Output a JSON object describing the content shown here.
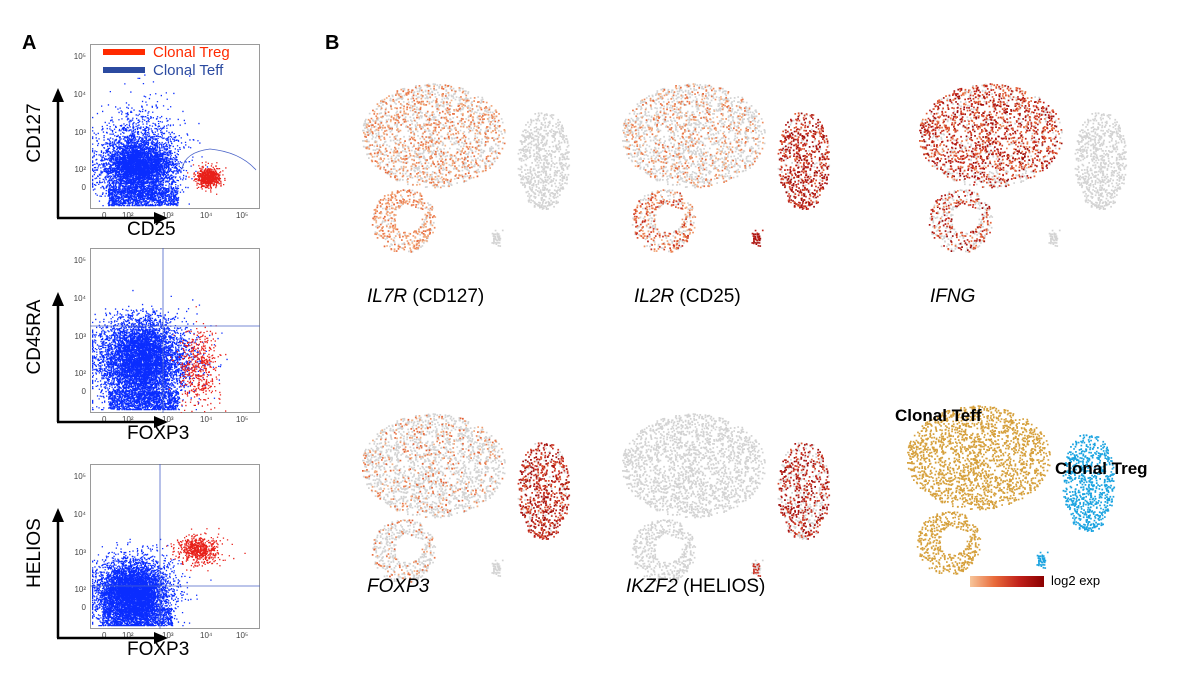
{
  "panels": {
    "a": "A",
    "b": "B"
  },
  "legend": {
    "items": [
      {
        "label": "Clonal Treg",
        "color": "#ff2a00"
      },
      {
        "label": "Clonal Teff",
        "color": "#2b4aa0"
      }
    ]
  },
  "flow_plots": [
    {
      "y_label": "CD127",
      "x_label": "CD25",
      "y_ticks": [
        "10⁵",
        "10⁴",
        "10³",
        "10²",
        "0"
      ],
      "x_ticks": [
        "0",
        "10²",
        "10³",
        "10⁴",
        "10⁵"
      ]
    },
    {
      "y_label": "CD45RA",
      "x_label": "FOXP3",
      "y_ticks": [
        "10⁵",
        "10⁴",
        "10³",
        "10²",
        "0"
      ],
      "x_ticks": [
        "0",
        "10²",
        "10³",
        "10⁴",
        "10⁵"
      ]
    },
    {
      "y_label": "HELIOS",
      "x_label": "FOXP3",
      "y_ticks": [
        "10⁵",
        "10⁴",
        "10³",
        "10²",
        "0"
      ],
      "x_ticks": [
        "0",
        "10²",
        "10³",
        "10⁴",
        "10⁵"
      ]
    }
  ],
  "tsne": [
    {
      "gene_italic": "IL7R",
      "gene_suffix": " (CD127)",
      "mode": "il7r"
    },
    {
      "gene_italic": "IL2R",
      "gene_suffix": " (CD25)",
      "mode": "il2r"
    },
    {
      "gene_italic": "IFNG",
      "gene_suffix": "",
      "mode": "ifng"
    },
    {
      "gene_italic": "FOXP3",
      "gene_suffix": "",
      "mode": "foxp3"
    },
    {
      "gene_italic": "IKZF2",
      "gene_suffix": " (HELIOS)",
      "mode": "ikzf2"
    },
    {
      "mode": "cluster",
      "teff_label": "Clonal Teff",
      "treg_label": "Clonal Treg",
      "teff_color": "#d6a03c",
      "treg_color": "#1aa3e0"
    }
  ],
  "colorbar": {
    "label": "log2 exp",
    "low": "#f7c59a",
    "high": "#8b0000"
  },
  "colors": {
    "teff_dots": "#0a2dff",
    "treg_dots": "#e8201a",
    "gate_line": "#4a63c8",
    "grey_dots": "#d3d3d3"
  }
}
